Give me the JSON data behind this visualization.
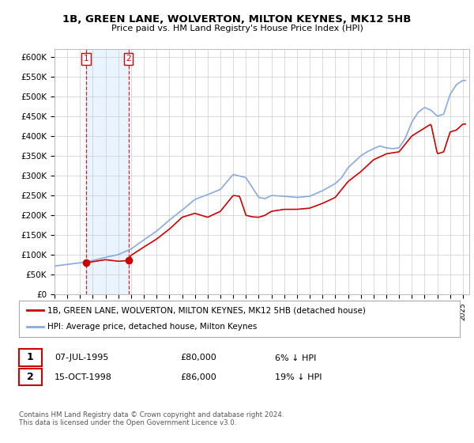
{
  "title": "1B, GREEN LANE, WOLVERTON, MILTON KEYNES, MK12 5HB",
  "subtitle": "Price paid vs. HM Land Registry's House Price Index (HPI)",
  "ylim": [
    0,
    620000
  ],
  "yticks": [
    0,
    50000,
    100000,
    150000,
    200000,
    250000,
    300000,
    350000,
    400000,
    450000,
    500000,
    550000,
    600000
  ],
  "ytick_labels": [
    "£0",
    "£50K",
    "£100K",
    "£150K",
    "£200K",
    "£250K",
    "£300K",
    "£350K",
    "£400K",
    "£450K",
    "£500K",
    "£550K",
    "£600K"
  ],
  "sale_year_nums": [
    1995.5,
    1998.79
  ],
  "sale_prices": [
    80000,
    86000
  ],
  "sale_labels": [
    "1",
    "2"
  ],
  "legend_sale": "1B, GREEN LANE, WOLVERTON, MILTON KEYNES, MK12 5HB (detached house)",
  "legend_hpi": "HPI: Average price, detached house, Milton Keynes",
  "annotation_1": "07-JUL-1995",
  "annotation_1_price": "£80,000",
  "annotation_1_hpi": "6% ↓ HPI",
  "annotation_2": "15-OCT-1998",
  "annotation_2_price": "£86,000",
  "annotation_2_hpi": "19% ↓ HPI",
  "footnote": "Contains HM Land Registry data © Crown copyright and database right 2024.\nThis data is licensed under the Open Government Licence v3.0.",
  "sale_color": "#cc0000",
  "hpi_color": "#88aadd",
  "vline_color": "#cc0000",
  "fill_color": "#ddeeff",
  "background_color": "#ffffff",
  "grid_color": "#cccccc",
  "hpi_key_years": [
    1993,
    1994,
    1995,
    1996,
    1997,
    1998,
    1999,
    2000,
    2001,
    2002,
    2003,
    2004,
    2005,
    2006,
    2007,
    2008,
    2008.5,
    2009,
    2009.5,
    2010,
    2011,
    2012,
    2013,
    2014,
    2015,
    2015.5,
    2016,
    2016.5,
    2017,
    2017.5,
    2018,
    2018.5,
    2019,
    2019.5,
    2020,
    2020.5,
    2021,
    2021.5,
    2022,
    2022.5,
    2023,
    2023.5,
    2024,
    2024.5,
    2025
  ],
  "hpi_key_vals": [
    72000,
    76000,
    80000,
    86000,
    94000,
    101000,
    115000,
    138000,
    160000,
    188000,
    213000,
    240000,
    252000,
    265000,
    303000,
    295000,
    270000,
    245000,
    242000,
    250000,
    248000,
    245000,
    248000,
    262000,
    280000,
    295000,
    320000,
    335000,
    350000,
    360000,
    368000,
    375000,
    370000,
    368000,
    370000,
    395000,
    435000,
    460000,
    472000,
    465000,
    450000,
    455000,
    505000,
    530000,
    540000
  ],
  "red_key_years": [
    1995.5,
    1996,
    1997,
    1998,
    1998.79,
    1999,
    2000,
    2001,
    2002,
    2003,
    2004,
    2005,
    2006,
    2007,
    2007.5,
    2008,
    2008.5,
    2009,
    2009.5,
    2010,
    2011,
    2012,
    2013,
    2014,
    2015,
    2016,
    2017,
    2018,
    2019,
    2020,
    2021,
    2022,
    2022.5,
    2023,
    2023.5,
    2024,
    2024.5,
    2025
  ],
  "red_key_vals": [
    80000,
    83000,
    88000,
    84000,
    86000,
    99000,
    120000,
    140000,
    165000,
    195000,
    205000,
    195000,
    210000,
    250000,
    248000,
    200000,
    196000,
    195000,
    200000,
    210000,
    215000,
    215000,
    218000,
    230000,
    245000,
    285000,
    310000,
    340000,
    355000,
    360000,
    400000,
    420000,
    430000,
    355000,
    360000,
    410000,
    415000,
    430000
  ]
}
